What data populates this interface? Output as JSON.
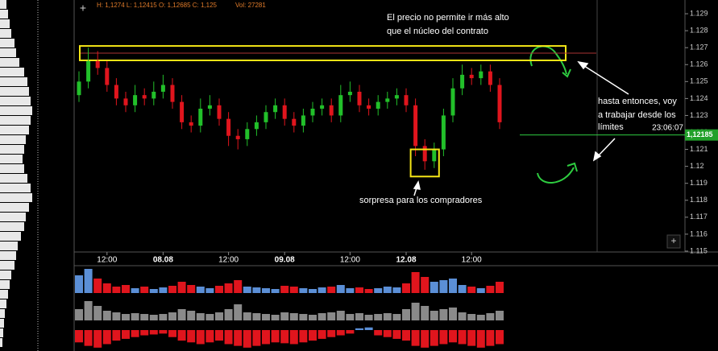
{
  "header": {
    "ohlc": "H: 1,1274 L: 1,12415 O: 1,12685 C: 1,125",
    "vol": "Vol: 27281"
  },
  "chart_data": {
    "type": "candlestick",
    "candles": [
      [
        1.1242,
        1.1256,
        1.1238,
        1.125
      ],
      [
        1.125,
        1.127,
        1.1246,
        1.1262
      ],
      [
        1.1262,
        1.1268,
        1.1254,
        1.1258
      ],
      [
        1.1258,
        1.1262,
        1.1244,
        1.1248
      ],
      [
        1.1248,
        1.1252,
        1.1236,
        1.124
      ],
      [
        1.124,
        1.1244,
        1.1232,
        1.1236
      ],
      [
        1.1236,
        1.1248,
        1.1232,
        1.1242
      ],
      [
        1.1242,
        1.1246,
        1.1236,
        1.124
      ],
      [
        1.124,
        1.125,
        1.1236,
        1.1244
      ],
      [
        1.1244,
        1.1254,
        1.124,
        1.1248
      ],
      [
        1.1248,
        1.1252,
        1.1234,
        1.1238
      ],
      [
        1.1238,
        1.1242,
        1.1222,
        1.1226
      ],
      [
        1.1226,
        1.123,
        1.122,
        1.1224
      ],
      [
        1.1224,
        1.124,
        1.122,
        1.1234
      ],
      [
        1.1234,
        1.1242,
        1.123,
        1.1236
      ],
      [
        1.1236,
        1.124,
        1.1224,
        1.1228
      ],
      [
        1.1228,
        1.1232,
        1.1212,
        1.1218
      ],
      [
        1.1218,
        1.1222,
        1.121,
        1.1216
      ],
      [
        1.1216,
        1.1226,
        1.1212,
        1.1222
      ],
      [
        1.1222,
        1.123,
        1.1218,
        1.1226
      ],
      [
        1.1226,
        1.1236,
        1.1222,
        1.1232
      ],
      [
        1.1232,
        1.124,
        1.1228,
        1.1236
      ],
      [
        1.1236,
        1.124,
        1.1224,
        1.1228
      ],
      [
        1.1228,
        1.1232,
        1.122,
        1.1224
      ],
      [
        1.1224,
        1.1234,
        1.122,
        1.123
      ],
      [
        1.123,
        1.1238,
        1.1226,
        1.1234
      ],
      [
        1.1234,
        1.124,
        1.123,
        1.1236
      ],
      [
        1.1236,
        1.124,
        1.1226,
        1.123
      ],
      [
        1.123,
        1.1248,
        1.1226,
        1.1242
      ],
      [
        1.1242,
        1.125,
        1.1238,
        1.1244
      ],
      [
        1.1244,
        1.1248,
        1.1232,
        1.1236
      ],
      [
        1.1236,
        1.124,
        1.123,
        1.1234
      ],
      [
        1.1234,
        1.1242,
        1.123,
        1.1238
      ],
      [
        1.1238,
        1.1244,
        1.1234,
        1.124
      ],
      [
        1.124,
        1.1246,
        1.1236,
        1.1242
      ],
      [
        1.1242,
        1.1246,
        1.1232,
        1.1236
      ],
      [
        1.1236,
        1.124,
        1.1206,
        1.1212
      ],
      [
        1.1212,
        1.1216,
        1.1198,
        1.1203
      ],
      [
        1.1203,
        1.1214,
        1.1199,
        1.121
      ],
      [
        1.121,
        1.1234,
        1.1206,
        1.123
      ],
      [
        1.123,
        1.1252,
        1.1226,
        1.1246
      ],
      [
        1.1246,
        1.126,
        1.1242,
        1.1254
      ],
      [
        1.1254,
        1.1258,
        1.1248,
        1.1252
      ],
      [
        1.1252,
        1.126,
        1.1248,
        1.1256
      ],
      [
        1.1256,
        1.126,
        1.1244,
        1.1248
      ],
      [
        1.1248,
        1.1252,
        1.1222,
        1.1226
      ]
    ],
    "up_color": "#22c02a",
    "down_color": "#e0151d",
    "volume_up_color": "#5b8fd6",
    "total_color": "#8a8a8a",
    "profile_color": "#e8e8e8",
    "ylim": [
      1.11495,
      1.12981
    ],
    "yticks": [
      1.129,
      1.128,
      1.127,
      1.126,
      1.125,
      1.124,
      1.123,
      1.122,
      1.121,
      1.12,
      1.119,
      1.118,
      1.117,
      1.116,
      1.115
    ],
    "xticks": [
      {
        "value": 3,
        "label": "12:00"
      },
      {
        "value": 9,
        "label": "08.08"
      },
      {
        "value": 16,
        "label": "12:00"
      },
      {
        "value": 22,
        "label": "09.08"
      },
      {
        "value": 29,
        "label": "12:00"
      },
      {
        "value": 35,
        "label": "12.08"
      },
      {
        "value": 42,
        "label": "12:00"
      }
    ],
    "current_price": {
      "value": 1.12185,
      "label": "1,12185"
    },
    "current_time": "23:06:07",
    "zone": [
      1.12625,
      1.1271
    ],
    "annotations": {
      "top": [
        "El precio no permite ir más alto",
        "que el núcleo del contrato"
      ],
      "right": [
        "hasta entonces, voy",
        "a trabajar desde los",
        "límites"
      ],
      "bottom": "sorpresa para los compradores"
    },
    "volume": [
      22,
      30,
      18,
      12,
      8,
      10,
      6,
      8,
      5,
      7,
      9,
      14,
      10,
      8,
      6,
      9,
      12,
      16,
      8,
      7,
      6,
      5,
      9,
      8,
      6,
      5,
      7,
      8,
      10,
      6,
      7,
      5,
      6,
      8,
      7,
      12,
      26,
      20,
      14,
      16,
      18,
      10,
      8,
      6,
      9,
      14
    ],
    "volume_total": [
      14,
      24,
      18,
      12,
      10,
      8,
      9,
      8,
      7,
      8,
      10,
      14,
      12,
      9,
      8,
      10,
      14,
      20,
      10,
      9,
      8,
      7,
      10,
      9,
      8,
      7,
      9,
      10,
      12,
      8,
      9,
      7,
      8,
      9,
      8,
      14,
      22,
      18,
      12,
      14,
      16,
      10,
      8,
      7,
      9,
      12
    ],
    "delta": [
      -14,
      -18,
      -20,
      -16,
      -12,
      -10,
      -8,
      -6,
      -5,
      -4,
      -8,
      -12,
      -14,
      -16,
      -14,
      -12,
      -16,
      -18,
      -20,
      -18,
      -16,
      -14,
      -15,
      -16,
      -14,
      -12,
      -10,
      -8,
      -6,
      -4,
      2,
      3,
      -6,
      -8,
      -10,
      -12,
      -18,
      -20,
      -18,
      -16,
      -14,
      -16,
      -18,
      -20,
      -18,
      -16
    ],
    "profile": [
      8,
      10,
      12,
      14,
      18,
      20,
      24,
      30,
      34,
      36,
      38,
      40,
      38,
      36,
      32,
      30,
      28,
      30,
      34,
      38,
      40,
      36,
      32,
      30,
      26,
      22,
      20,
      18,
      14,
      12,
      10,
      8,
      6,
      5,
      4,
      3
    ]
  }
}
